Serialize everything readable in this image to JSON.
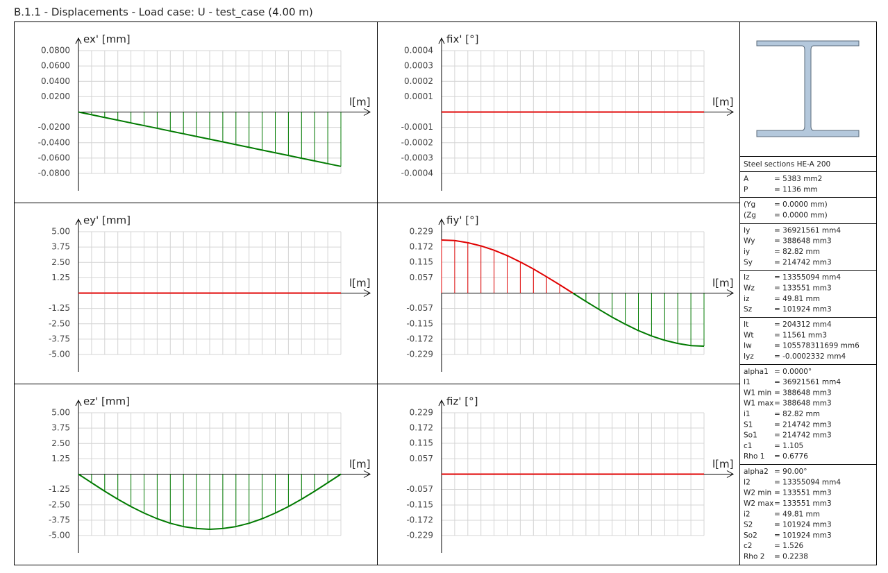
{
  "title": "B.1.1 - Displacements - Load case: U - test_case (4.00 m)",
  "chart_data": [
    {
      "type": "line",
      "y_label": "ex' [mm]",
      "x_label": "l[m]",
      "x": [
        0,
        0.2,
        0.4,
        0.6,
        0.8,
        1,
        1.2,
        1.4,
        1.6,
        1.8,
        2,
        2.2,
        2.4,
        2.6,
        2.8,
        3,
        3.2,
        3.4,
        3.6,
        3.8,
        4
      ],
      "values": [
        0,
        -0.0035,
        -0.0071,
        -0.0106,
        -0.0142,
        -0.0177,
        -0.0212,
        -0.0248,
        -0.0283,
        -0.0319,
        -0.0354,
        -0.0389,
        -0.0425,
        -0.046,
        -0.0496,
        -0.0531,
        -0.0566,
        -0.0602,
        -0.0637,
        -0.0673,
        -0.0708
      ],
      "xlim": [
        0,
        4
      ],
      "ylim": [
        -0.08,
        0.08
      ],
      "yticks": [
        {
          "value": 0.08,
          "label": "0.0800"
        },
        {
          "value": 0.06,
          "label": "0.0600"
        },
        {
          "value": 0.04,
          "label": "0.0400"
        },
        {
          "value": 0.02,
          "label": "0.0200"
        },
        {
          "value": -0.02,
          "label": "-0.0200"
        },
        {
          "value": -0.04,
          "label": "-0.0400"
        },
        {
          "value": -0.06,
          "label": "-0.0600"
        },
        {
          "value": -0.08,
          "label": "-0.0800"
        }
      ],
      "grid": true,
      "positive_color": "#e00000",
      "negative_color": "#007a00"
    },
    {
      "type": "line",
      "y_label": "fix' [°]",
      "x_label": "l[m]",
      "x": [
        0,
        0.2,
        0.4,
        0.6,
        0.8,
        1,
        1.2,
        1.4,
        1.6,
        1.8,
        2,
        2.2,
        2.4,
        2.6,
        2.8,
        3,
        3.2,
        3.4,
        3.6,
        3.8,
        4
      ],
      "values": [
        0,
        0,
        0,
        0,
        0,
        0,
        0,
        0,
        0,
        0,
        0,
        0,
        0,
        0,
        0,
        0,
        0,
        0,
        0,
        0,
        0
      ],
      "xlim": [
        0,
        4
      ],
      "ylim": [
        -0.0004,
        0.0004
      ],
      "yticks": [
        0.0004,
        0.0003,
        0.0002,
        0.0001,
        -0.0001,
        -0.0002,
        -0.0003,
        -0.0004
      ],
      "grid": true,
      "positive_color": "#e00000",
      "negative_color": "#007a00"
    },
    {
      "type": "line",
      "y_label": "ey' [mm]",
      "x_label": "l[m]",
      "x": [
        0,
        0.2,
        0.4,
        0.6,
        0.8,
        1,
        1.2,
        1.4,
        1.6,
        1.8,
        2,
        2.2,
        2.4,
        2.6,
        2.8,
        3,
        3.2,
        3.4,
        3.6,
        3.8,
        4
      ],
      "values": [
        0,
        0,
        0,
        0,
        0,
        0,
        0,
        0,
        0,
        0,
        0,
        0,
        0,
        0,
        0,
        0,
        0,
        0,
        0,
        0,
        0
      ],
      "xlim": [
        0,
        4
      ],
      "ylim": [
        -5,
        5
      ],
      "yticks": [
        {
          "value": 5,
          "label": "5.00"
        },
        3.75,
        {
          "value": 2.5,
          "label": "2.50"
        },
        1.25,
        -1.25,
        {
          "value": -2.5,
          "label": "-2.50"
        },
        -3.75,
        {
          "value": -5,
          "label": "-5.00"
        }
      ],
      "grid": true,
      "positive_color": "#e00000",
      "negative_color": "#007a00"
    },
    {
      "type": "line",
      "y_label": "fiy' [°]",
      "x_label": "l[m]",
      "x": [
        0,
        0.2,
        0.4,
        0.6,
        0.8,
        1,
        1.2,
        1.4,
        1.6,
        1.8,
        2,
        2.2,
        2.4,
        2.6,
        2.8,
        3,
        3.2,
        3.4,
        3.6,
        3.8,
        4
      ],
      "values": [
        0.198,
        0.196,
        0.188,
        0.176,
        0.16,
        0.14,
        0.116,
        0.09,
        0.061,
        0.031,
        0,
        -0.031,
        -0.061,
        -0.09,
        -0.116,
        -0.14,
        -0.16,
        -0.176,
        -0.188,
        -0.196,
        -0.198
      ],
      "xlim": [
        0,
        4
      ],
      "ylim": [
        -0.229,
        0.229
      ],
      "yticks": [
        0.229,
        0.172,
        0.115,
        0.057,
        -0.057,
        -0.115,
        -0.172,
        -0.229
      ],
      "grid": true,
      "positive_color": "#e00000",
      "negative_color": "#007a00"
    },
    {
      "type": "line",
      "y_label": "ez' [mm]",
      "x_label": "l[m]",
      "x": [
        0,
        0.2,
        0.4,
        0.6,
        0.8,
        1,
        1.2,
        1.4,
        1.6,
        1.8,
        2,
        2.2,
        2.4,
        2.6,
        2.8,
        3,
        3.2,
        3.4,
        3.6,
        3.8,
        4
      ],
      "values": [
        0,
        -0.7,
        -1.39,
        -2.04,
        -2.64,
        -3.17,
        -3.63,
        -4,
        -4.27,
        -4.43,
        -4.49,
        -4.43,
        -4.27,
        -4,
        -3.63,
        -3.17,
        -2.64,
        -2.04,
        -1.39,
        -0.7,
        0
      ],
      "xlim": [
        0,
        4
      ],
      "ylim": [
        -5,
        5
      ],
      "yticks": [
        {
          "value": 5,
          "label": "5.00"
        },
        3.75,
        {
          "value": 2.5,
          "label": "2.50"
        },
        1.25,
        -1.25,
        {
          "value": -2.5,
          "label": "-2.50"
        },
        -3.75,
        {
          "value": -5,
          "label": "-5.00"
        }
      ],
      "grid": true,
      "positive_color": "#e00000",
      "negative_color": "#007a00"
    },
    {
      "type": "line",
      "y_label": "fiz' [°]",
      "x_label": "l[m]",
      "x": [
        0,
        0.2,
        0.4,
        0.6,
        0.8,
        1,
        1.2,
        1.4,
        1.6,
        1.8,
        2,
        2.2,
        2.4,
        2.6,
        2.8,
        3,
        3.2,
        3.4,
        3.6,
        3.8,
        4
      ],
      "values": [
        0,
        0,
        0,
        0,
        0,
        0,
        0,
        0,
        0,
        0,
        0,
        0,
        0,
        0,
        0,
        0,
        0,
        0,
        0,
        0,
        0
      ],
      "xlim": [
        0,
        4
      ],
      "ylim": [
        -0.229,
        0.229
      ],
      "yticks": [
        0.229,
        0.172,
        0.115,
        0.057,
        -0.057,
        -0.115,
        -0.172,
        -0.229
      ],
      "grid": true,
      "positive_color": "#e00000",
      "negative_color": "#007a00"
    }
  ],
  "section": {
    "title": "Steel sections HE-A 200",
    "groups": [
      [
        [
          "A",
          "= 5383 mm2"
        ],
        [
          "P",
          "= 1136 mm"
        ]
      ],
      [
        [
          "(Yg",
          "= 0.0000 mm)"
        ],
        [
          "(Zg",
          "= 0.0000 mm)"
        ]
      ],
      [
        [
          "Iy",
          "= 36921561 mm4"
        ],
        [
          "Wy",
          "= 388648 mm3"
        ],
        [
          "iy",
          "= 82.82 mm"
        ],
        [
          "Sy",
          "= 214742 mm3"
        ]
      ],
      [
        [
          "Iz",
          "= 13355094 mm4"
        ],
        [
          "Wz",
          "= 133551 mm3"
        ],
        [
          "iz",
          "= 49.81 mm"
        ],
        [
          "Sz",
          "= 101924 mm3"
        ]
      ],
      [
        [
          "It",
          "= 204312 mm4"
        ],
        [
          "Wt",
          "= 11561 mm3"
        ],
        [
          "Iw",
          "= 105578311699 mm6"
        ],
        [
          "Iyz",
          "= -0.0002332 mm4"
        ]
      ],
      [
        [
          "alpha1",
          "= 0.0000°"
        ],
        [
          "I1",
          "= 36921561 mm4"
        ],
        [
          "W1 min",
          "= 388648 mm3"
        ],
        [
          "W1 max",
          "= 388648 mm3"
        ],
        [
          "i1",
          "= 82.82 mm"
        ],
        [
          "S1",
          "= 214742 mm3"
        ],
        [
          "So1",
          "= 214742 mm3"
        ],
        [
          "c1",
          "= 1.105"
        ],
        [
          "Rho 1",
          "= 0.6776"
        ]
      ],
      [
        [
          "alpha2",
          "= 90.00°"
        ],
        [
          "I2",
          "= 13355094 mm4"
        ],
        [
          "W2 min",
          "= 133551 mm3"
        ],
        [
          "W2 max",
          "= 133551 mm3"
        ],
        [
          "i2",
          "= 49.81 mm"
        ],
        [
          "S2",
          "= 101924 mm3"
        ],
        [
          "So2",
          "= 101924 mm3"
        ],
        [
          "c2",
          "= 1.526"
        ],
        [
          "Rho 2",
          "= 0.2238"
        ]
      ]
    ]
  }
}
